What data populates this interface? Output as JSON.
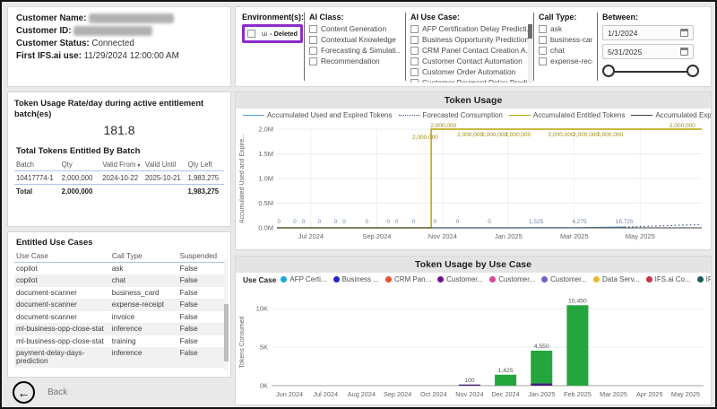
{
  "customer": {
    "name_label": "Customer Name:",
    "id_label": "Customer ID:",
    "status_label": "Customer Status:",
    "status_value": "Connected",
    "first_use_label": "First IFS.ai use:",
    "first_use_value": "11/29/2024 12:00:00 AM"
  },
  "filters": {
    "environment": {
      "title": "Environment(s):",
      "items": [
        {
          "label": "uat",
          "suffix": "- Deleted"
        }
      ]
    },
    "ai_class": {
      "title": "AI Class:",
      "items": [
        "Content Generation",
        "Contextual Knowledge",
        "Forecasting & Simulati...",
        "Recommendation"
      ]
    },
    "ai_use_case": {
      "title": "AI Use Case:",
      "items": [
        "AFP Certification Delay Predicti...",
        "Business Opportunity Prediction",
        "CRM Panel Contact Creation A...",
        "Customer Contact Automation",
        "Customer Order Automation",
        "Customer Payment Delay Predi..."
      ]
    },
    "call_type": {
      "title": "Call Type:",
      "items": [
        "ask",
        "business-card",
        "chat",
        "expense-rece..."
      ]
    },
    "between": {
      "title": "Between:",
      "start": "1/1/2024",
      "end": "5/31/2025"
    }
  },
  "rate_panel": {
    "title": "Token Usage Rate/day during active entitlement batch(es)",
    "value": "181.8",
    "batch_title": "Total Tokens Entitled By Batch",
    "batch_table": {
      "headers": [
        "Batch",
        "Qty",
        "Valid From",
        "Valid Until",
        "Qty Left"
      ],
      "rows": [
        [
          "10417774-1",
          "2,000,000",
          "2024-10-22",
          "2025-10-21",
          "1,983,275"
        ]
      ],
      "total": [
        "Total",
        "2,000,000",
        "",
        "",
        "1,983,275"
      ]
    }
  },
  "use_cases_panel": {
    "title": "Entitled Use Cases",
    "headers": [
      "Use Case",
      "Call Type",
      "Suspended"
    ],
    "rows": [
      [
        "copilot",
        "ask",
        "False"
      ],
      [
        "copilot",
        "chat",
        "False"
      ],
      [
        "document-scanner",
        "business_card",
        "False"
      ],
      [
        "document-scanner",
        "expense-receipt",
        "False"
      ],
      [
        "document-scanner",
        "invoice",
        "False"
      ],
      [
        "ml-business-opp-close-stat",
        "inference",
        "False"
      ],
      [
        "ml-business-opp-close-stat",
        "training",
        "False"
      ],
      [
        "payment-delay-days-prediction",
        "inference",
        "False"
      ]
    ]
  },
  "back_label": "Back",
  "icons": {
    "back_arrow": "←",
    "legend_more": "▶",
    "sort_desc": "▼",
    "calendar": "calendar-grid"
  },
  "chart_data": [
    {
      "id": "token_usage",
      "type": "line",
      "title": "Token Usage",
      "ylabel": "Accumulated Used and Expire...",
      "ylim": [
        0,
        2000000
      ],
      "gold_label": "2,000,000",
      "y_ticks": [
        {
          "v": 0,
          "t": "0.0M"
        },
        {
          "v": 500000,
          "t": "0.5M"
        },
        {
          "v": 1000000,
          "t": "1.0M"
        },
        {
          "v": 1500000,
          "t": "1.5M"
        },
        {
          "v": 2000000,
          "t": "2.0M"
        }
      ],
      "x_ticks": [
        {
          "f": 0.08,
          "t": "Jul 2024"
        },
        {
          "f": 0.235,
          "t": "Sep 2024"
        },
        {
          "f": 0.39,
          "t": "Nov 2024"
        },
        {
          "f": 0.545,
          "t": "Jan 2025"
        },
        {
          "f": 0.7,
          "t": "Mar 2025"
        },
        {
          "f": 0.855,
          "t": "May 2025"
        }
      ],
      "series": [
        {
          "name": "Accumulated Used and Expired Tokens",
          "color": "#4e9bd8",
          "style": "solid",
          "width": 1.2,
          "points": [
            [
              0,
              0
            ],
            [
              0.55,
              0
            ],
            [
              0.61,
              1525
            ],
            [
              0.712,
              4275
            ],
            [
              0.818,
              16725
            ]
          ]
        },
        {
          "name": "Forecasted Consumption",
          "color": "#3a5a82",
          "style": "dotted",
          "width": 1.2,
          "points": [
            [
              0.818,
              16725
            ],
            [
              1.0,
              68000
            ]
          ]
        },
        {
          "name": "Accumulated Entitled Tokens",
          "color": "#b8a202",
          "style": "solid",
          "width": 1.5,
          "points": [
            [
              0,
              0
            ],
            [
              0.363,
              0
            ],
            [
              0.363,
              2000000
            ],
            [
              1.0,
              2000000
            ]
          ]
        },
        {
          "name": "Accumulated Expired Unused Tokens",
          "color": "#3f3f3f",
          "style": "solid",
          "width": 1.0,
          "points": [
            [
              0,
              0
            ],
            [
              1.0,
              0
            ]
          ]
        }
      ],
      "labels": {
        "gold": [
          {
            "f": 0.349,
            "dy": 11
          },
          {
            "f": 0.392,
            "dy": -2
          },
          {
            "f": 0.455,
            "dy": 8
          },
          {
            "f": 0.512,
            "dy": 8
          },
          {
            "f": 0.567,
            "dy": 8
          },
          {
            "f": 0.669,
            "dy": 8
          },
          {
            "f": 0.727,
            "dy": 8
          },
          {
            "f": 0.784,
            "dy": 8
          },
          {
            "f": 0.985,
            "dy": -2
          }
        ],
        "blue": [
          {
            "f": 0.005,
            "t": "0"
          },
          {
            "f": 0.042,
            "t": "0"
          },
          {
            "f": 0.062,
            "t": "0"
          },
          {
            "f": 0.1,
            "t": "0"
          },
          {
            "f": 0.138,
            "t": "0"
          },
          {
            "f": 0.158,
            "t": "0"
          },
          {
            "f": 0.212,
            "t": "0"
          },
          {
            "f": 0.262,
            "t": "0"
          },
          {
            "f": 0.282,
            "t": "0"
          },
          {
            "f": 0.322,
            "t": "0"
          },
          {
            "f": 0.372,
            "t": "0"
          },
          {
            "f": 0.425,
            "t": "0"
          },
          {
            "f": 0.5,
            "t": "0"
          },
          {
            "f": 0.61,
            "t": "1,525"
          },
          {
            "f": 0.712,
            "t": "4,275"
          },
          {
            "f": 0.818,
            "t": "16,725"
          }
        ]
      }
    },
    {
      "id": "token_usage_by_use_case",
      "type": "bar",
      "title": "Token Usage by Use Case",
      "ylabel": "Tokens Consumed",
      "ylim": [
        0,
        11300
      ],
      "y_ticks": [
        {
          "v": 0,
          "t": "0K"
        },
        {
          "v": 5000,
          "t": "5K"
        },
        {
          "v": 10000,
          "t": "10K"
        }
      ],
      "categories": [
        "Jun 2024",
        "Jul 2024",
        "Aug 2024",
        "Sep 2024",
        "Oct 2024",
        "Nov 2024",
        "Dec 2024",
        "Jan 2025",
        "Feb 2025",
        "Mar 2025",
        "Apr 2025",
        "May 2025"
      ],
      "series": [
        {
          "name": "purple-segment",
          "color": "#461e78",
          "values": [
            0,
            0,
            0,
            0,
            0,
            100,
            0,
            300,
            0,
            0,
            0,
            0
          ]
        },
        {
          "name": "green-segment",
          "color": "#23a63c",
          "values": [
            0,
            0,
            0,
            0,
            0,
            0,
            1425,
            4250,
            10450,
            0,
            0,
            0
          ]
        }
      ],
      "bar_labels": [
        "",
        "",
        "",
        "",
        "",
        "100",
        "1,425",
        "4,550",
        "10,450",
        "",
        "",
        ""
      ],
      "legend_title": "Use Case",
      "legend_items": [
        {
          "label": "AFP Certi...",
          "color": "#1ca8dd"
        },
        {
          "label": "Business ...",
          "color": "#2427c4"
        },
        {
          "label": "CRM Pan...",
          "color": "#e8502c"
        },
        {
          "label": "Customer...",
          "color": "#740f8c"
        },
        {
          "label": "Customer...",
          "color": "#d9479b"
        },
        {
          "label": "Customer...",
          "color": "#7b5cc8"
        },
        {
          "label": "Data Serv...",
          "color": "#e3bb28"
        },
        {
          "label": "IFS.ai Co...",
          "color": "#c93246"
        },
        {
          "label": "IFS.ai Co...",
          "color": "#1c5b54"
        },
        {
          "label": "IFS.ai Co...",
          "color": "#19a337"
        }
      ]
    }
  ]
}
